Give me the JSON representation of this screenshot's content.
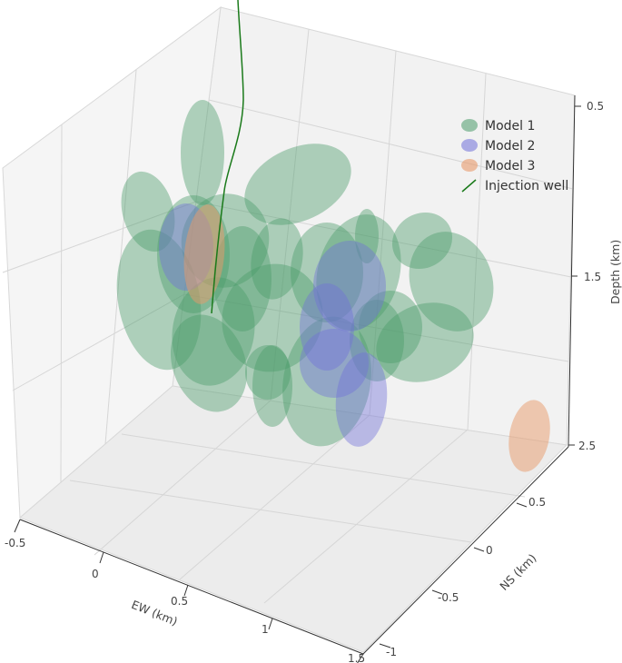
{
  "chart_data": {
    "type": "scatter",
    "title": "",
    "axes": {
      "ew": {
        "label": "EW (km)",
        "ticks": [
          "-0.5",
          "0",
          "0.5",
          "1",
          "1.5"
        ]
      },
      "ns": {
        "label": "NS (km)",
        "ticks": [
          "-1",
          "-0.5",
          "0",
          "0.5"
        ]
      },
      "depth": {
        "label": "Depth (km)",
        "ticks": [
          "0.5",
          "1.5",
          "2.5"
        ]
      }
    },
    "legend": {
      "placement": "top-right",
      "entries": [
        {
          "label": "Model 1",
          "color": "#4a9a6a",
          "marker": "ellipse"
        },
        {
          "label": "Model 2",
          "color": "#7070d8",
          "marker": "ellipse"
        },
        {
          "label": "Model 3",
          "color": "#e89a6a",
          "marker": "ellipse"
        },
        {
          "label": "Injection well",
          "color": "#1a7a1a",
          "marker": "line"
        }
      ]
    },
    "series": [
      {
        "name": "Model 1",
        "color": "#4a9a6a",
        "count": 22
      },
      {
        "name": "Model 2",
        "color": "#7070d8",
        "count": 5
      },
      {
        "name": "Model 3",
        "color": "#e89a6a",
        "count": 2
      },
      {
        "name": "Injection well",
        "color": "#1a7a1a"
      }
    ],
    "grid": true
  }
}
